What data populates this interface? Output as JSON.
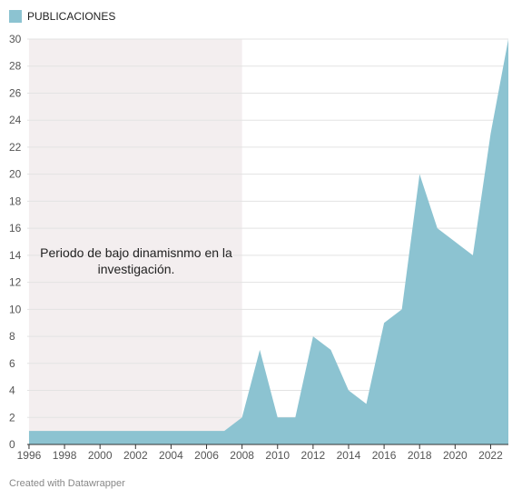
{
  "legend": {
    "label": "PUBLICACIONES",
    "color": "#8cc3d1"
  },
  "footer": {
    "text": "Created with Datawrapper"
  },
  "chart_data": {
    "type": "area",
    "series": [
      {
        "name": "PUBLICACIONES",
        "color": "#8cc3d1",
        "x": [
          1996,
          1997,
          1998,
          1999,
          2000,
          2001,
          2002,
          2003,
          2004,
          2005,
          2006,
          2007,
          2008,
          2009,
          2010,
          2011,
          2012,
          2013,
          2014,
          2015,
          2016,
          2017,
          2018,
          2019,
          2020,
          2021,
          2022,
          2023
        ],
        "values": [
          1,
          1,
          1,
          1,
          1,
          1,
          1,
          1,
          1,
          1,
          1,
          1,
          2,
          7,
          2,
          2,
          8,
          7,
          4,
          3,
          9,
          10,
          20,
          16,
          15,
          14,
          23,
          30
        ]
      }
    ],
    "xlim": [
      1995.9,
      2023
    ],
    "ylim": [
      0,
      30
    ],
    "xticks": [
      1996,
      1998,
      2000,
      2002,
      2004,
      2006,
      2008,
      2010,
      2012,
      2014,
      2016,
      2018,
      2020,
      2022
    ],
    "yticks": [
      0,
      2,
      4,
      6,
      8,
      10,
      12,
      14,
      16,
      18,
      20,
      22,
      24,
      26,
      28,
      30
    ],
    "grid": true,
    "shaded_region": {
      "x": [
        1996,
        2008
      ],
      "color": "#f3eeef"
    },
    "annotation": {
      "lines": [
        "Periodo de bajo dinamisnmo en la",
        "investigación."
      ]
    }
  }
}
